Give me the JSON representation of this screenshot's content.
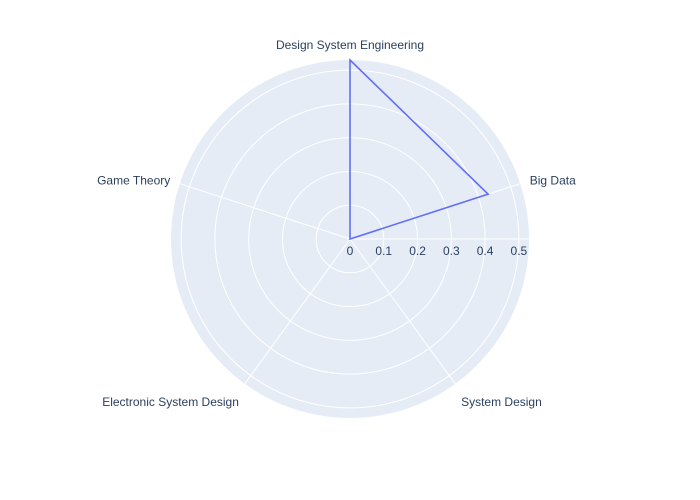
{
  "chart_data": {
    "type": "radar",
    "axes": [
      "Design System Engineering",
      "Big Data",
      "System Design",
      "Electronic System Design",
      "Game Theory"
    ],
    "series": [
      {
        "values": [
          0.53,
          0.43,
          0,
          0,
          0
        ],
        "color": "#636efa"
      }
    ],
    "radial_range": [
      0,
      0.53
    ],
    "radial_ticks": [
      "0",
      "0.1",
      "0.2",
      "0.3",
      "0.4",
      "0.5"
    ],
    "radial_tick_values": [
      0,
      0.1,
      0.2,
      0.3,
      0.4,
      0.5
    ],
    "grid": true,
    "colors": {
      "polar_background": "#e5ecf6",
      "grid": "#ffffff",
      "text": "#2a3f5f",
      "series": "#636efa"
    }
  }
}
